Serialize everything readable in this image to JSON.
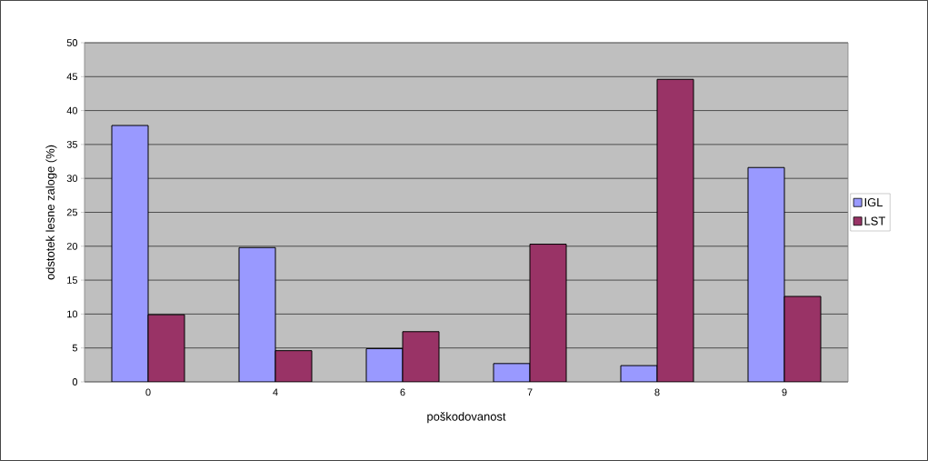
{
  "chart_data": {
    "type": "bar",
    "xlabel": "poškodovanost",
    "ylabel": "odstotek lesne zaloge (%)",
    "categories": [
      "0",
      "4",
      "6",
      "7",
      "8",
      "9"
    ],
    "series": [
      {
        "name": "IGL",
        "color": "#9999ff",
        "values": [
          37.8,
          19.8,
          4.9,
          2.7,
          2.4,
          31.6
        ]
      },
      {
        "name": "LST",
        "color": "#993366",
        "values": [
          9.9,
          4.6,
          7.4,
          20.3,
          44.6,
          12.6
        ]
      }
    ],
    "ylim": [
      0,
      50
    ],
    "yticks": [
      0,
      5,
      10,
      15,
      20,
      25,
      30,
      35,
      40,
      45,
      50
    ],
    "grid": "y",
    "legend": "right"
  }
}
